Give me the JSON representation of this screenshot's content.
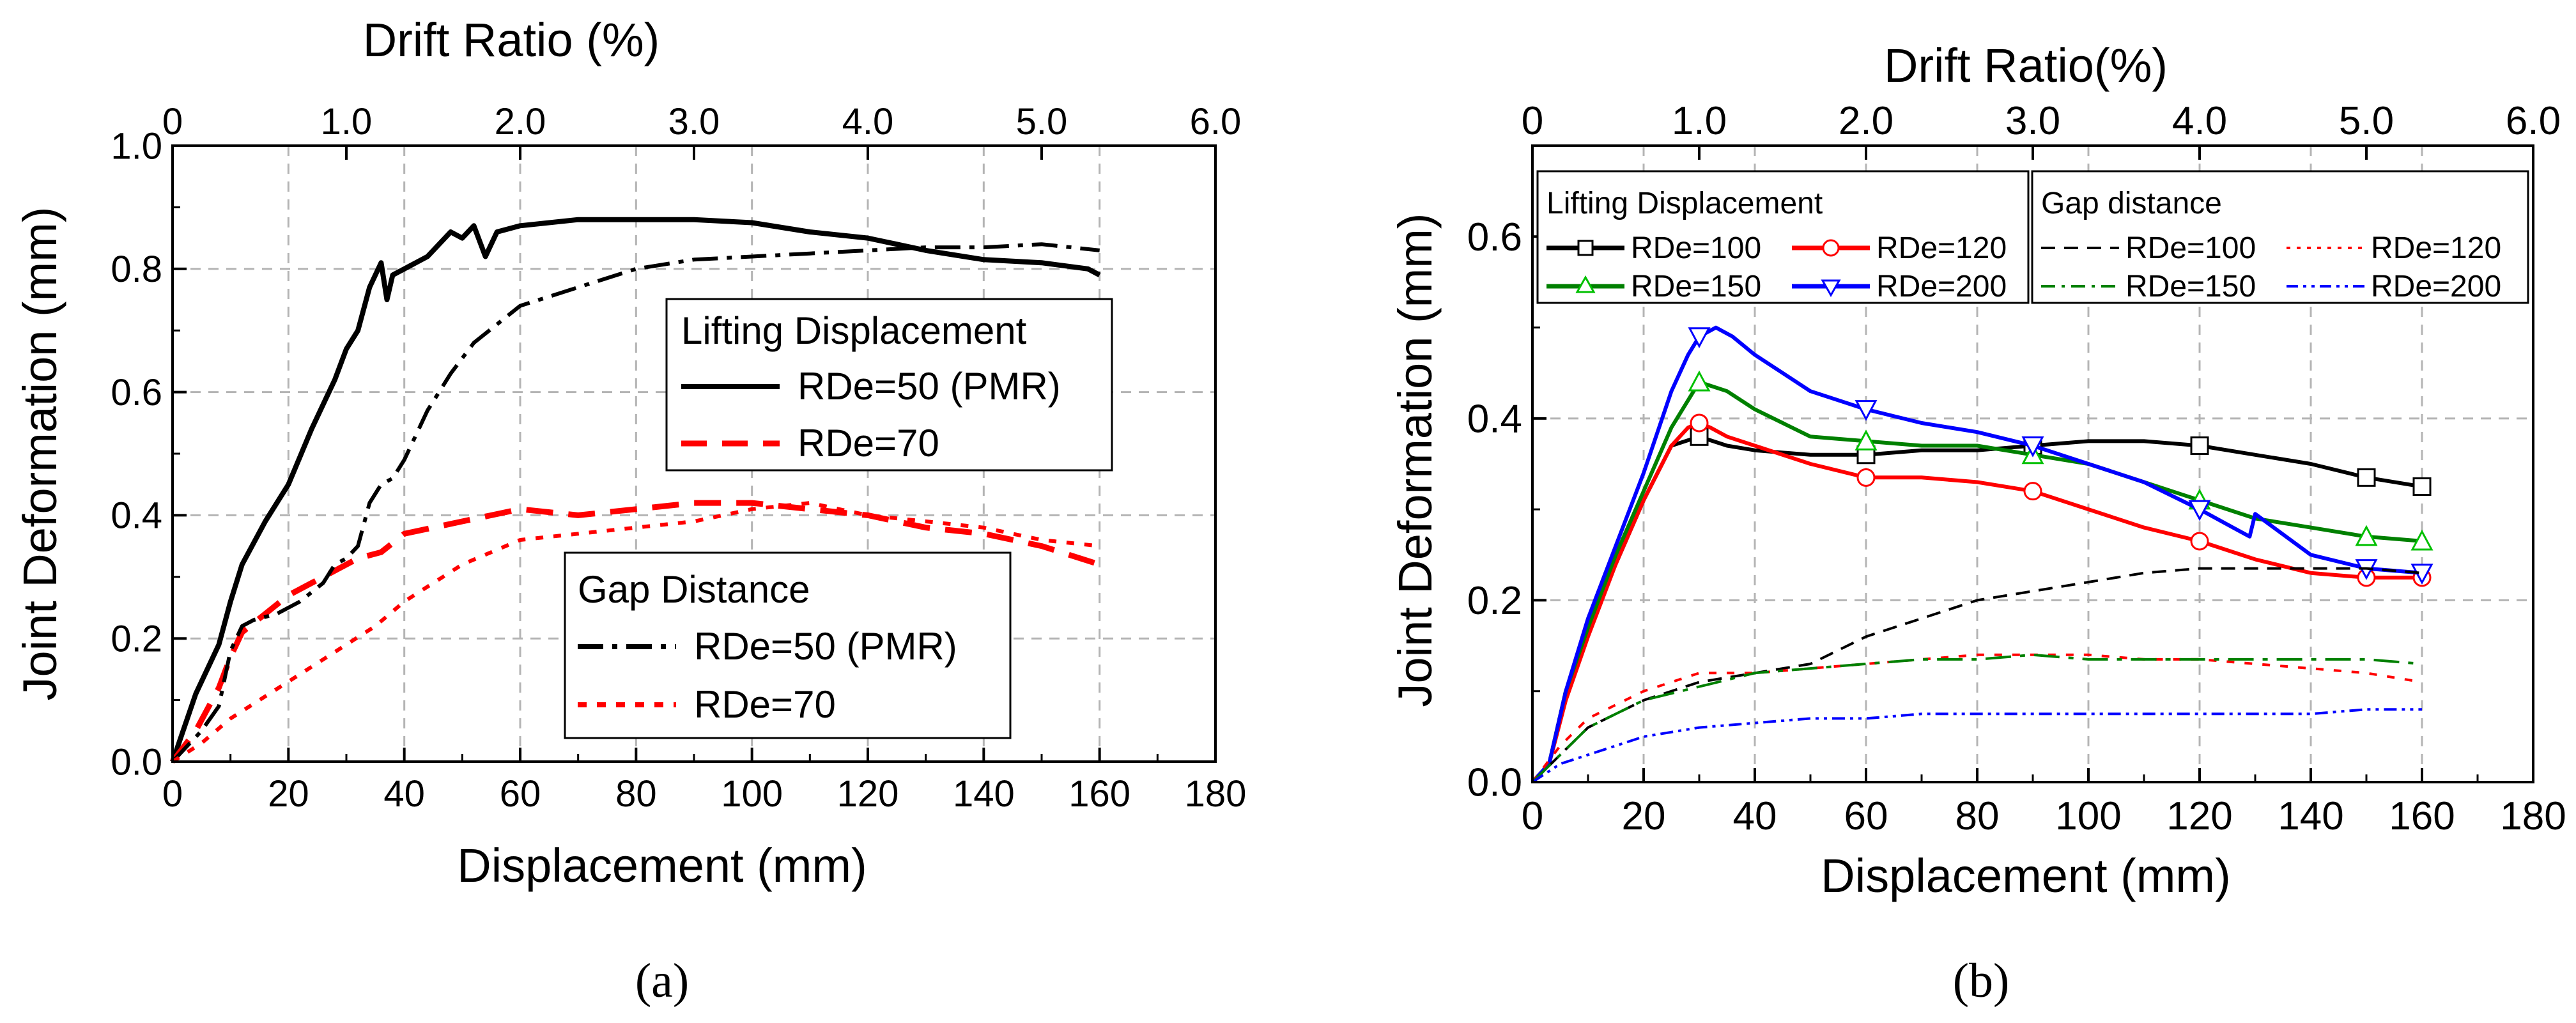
{
  "chart_data": [
    {
      "type": "line",
      "panel_label": "(a)",
      "xlabel": "Displacement (mm)",
      "ylabel": "Joint Deformation (mm)",
      "top_xlabel": "Drift Ratio (%)",
      "xlim": [
        0,
        180
      ],
      "ylim": [
        0,
        1.0
      ],
      "top_xlim": [
        0,
        6.0
      ],
      "x_ticks": [
        "0",
        "20",
        "40",
        "60",
        "80",
        "100",
        "120",
        "140",
        "160",
        "180"
      ],
      "y_ticks": [
        "0.0",
        "0.2",
        "0.4",
        "0.6",
        "0.8",
        "1.0"
      ],
      "top_ticks": [
        "0",
        "1.0",
        "2.0",
        "3.0",
        "4.0",
        "5.0",
        "6.0"
      ],
      "grid": true,
      "legends": [
        {
          "title": "Lifting Displacement",
          "position": "center-right",
          "entries": [
            "RDe=50 (PMR)",
            "RDe=70"
          ]
        },
        {
          "title": "Gap Distance",
          "position": "lower-center",
          "entries": [
            "RDe=50 (PMR)",
            "RDe=70"
          ]
        }
      ],
      "series": [
        {
          "name": "Lifting Displacement RDe=50 (PMR)",
          "color": "#000000",
          "style": "solid",
          "x": [
            0,
            4,
            8,
            10,
            12,
            16,
            20,
            24,
            28,
            30,
            32,
            34,
            36,
            37,
            38,
            40,
            44,
            48,
            50,
            52,
            54,
            56,
            60,
            70,
            80,
            90,
            100,
            110,
            120,
            130,
            140,
            150,
            158,
            160
          ],
          "y": [
            0,
            0.11,
            0.19,
            0.26,
            0.32,
            0.39,
            0.45,
            0.54,
            0.62,
            0.67,
            0.7,
            0.77,
            0.81,
            0.75,
            0.79,
            0.8,
            0.82,
            0.86,
            0.85,
            0.87,
            0.82,
            0.86,
            0.87,
            0.88,
            0.88,
            0.88,
            0.875,
            0.86,
            0.85,
            0.83,
            0.815,
            0.81,
            0.8,
            0.79
          ]
        },
        {
          "name": "Lifting Displacement RDe=70",
          "color": "#ff0000",
          "style": "dash",
          "x": [
            0,
            4,
            8,
            10,
            12,
            16,
            20,
            24,
            28,
            30,
            32,
            36,
            40,
            50,
            60,
            70,
            80,
            90,
            100,
            110,
            120,
            130,
            140,
            150,
            160
          ],
          "y": [
            0,
            0.05,
            0.12,
            0.17,
            0.21,
            0.24,
            0.27,
            0.29,
            0.31,
            0.32,
            0.33,
            0.34,
            0.37,
            0.39,
            0.41,
            0.4,
            0.41,
            0.42,
            0.42,
            0.41,
            0.4,
            0.38,
            0.37,
            0.35,
            0.32
          ]
        },
        {
          "name": "Gap Distance RDe=50 (PMR)",
          "color": "#000000",
          "style": "dashdot",
          "x": [
            0,
            5,
            8,
            10,
            12,
            14,
            18,
            22,
            26,
            28,
            30,
            32,
            34,
            36,
            38,
            40,
            42,
            44,
            46,
            48,
            52,
            56,
            60,
            70,
            80,
            90,
            100,
            110,
            120,
            130,
            140,
            150,
            160
          ],
          "y": [
            0,
            0.05,
            0.09,
            0.18,
            0.22,
            0.23,
            0.24,
            0.26,
            0.29,
            0.32,
            0.33,
            0.35,
            0.42,
            0.45,
            0.46,
            0.49,
            0.53,
            0.57,
            0.6,
            0.63,
            0.68,
            0.71,
            0.74,
            0.77,
            0.8,
            0.815,
            0.82,
            0.825,
            0.83,
            0.835,
            0.835,
            0.84,
            0.83
          ]
        },
        {
          "name": "Gap Distance RDe=70",
          "color": "#ff0000",
          "style": "dot",
          "x": [
            0,
            5,
            10,
            15,
            20,
            25,
            30,
            35,
            40,
            45,
            50,
            55,
            60,
            70,
            80,
            90,
            100,
            110,
            120,
            130,
            140,
            150,
            160
          ],
          "y": [
            0,
            0.03,
            0.07,
            0.1,
            0.13,
            0.16,
            0.19,
            0.22,
            0.26,
            0.29,
            0.32,
            0.34,
            0.36,
            0.37,
            0.38,
            0.39,
            0.41,
            0.42,
            0.4,
            0.39,
            0.38,
            0.36,
            0.35
          ]
        }
      ]
    },
    {
      "type": "line",
      "panel_label": "(b)",
      "xlabel": "Displacement (mm)",
      "ylabel": "Joint Deformation (mm)",
      "top_xlabel": "Drift Ratio(%)",
      "xlim": [
        0,
        180
      ],
      "ylim": [
        0,
        0.7
      ],
      "top_xlim": [
        0,
        6.0
      ],
      "x_ticks": [
        "0",
        "20",
        "40",
        "60",
        "80",
        "100",
        "120",
        "140",
        "160",
        "180"
      ],
      "y_ticks": [
        "0.0",
        "0.2",
        "0.4",
        "0.6"
      ],
      "top_ticks": [
        "0",
        "1.0",
        "2.0",
        "3.0",
        "4.0",
        "5.0",
        "6.0"
      ],
      "grid": true,
      "legends": [
        {
          "title": "Lifting Displacement",
          "position": "top-left",
          "entries": [
            "RDe=100",
            "RDe=120",
            "RDe=150",
            "RDe=200"
          ]
        },
        {
          "title": "Gap distance",
          "position": "top-right",
          "entries": [
            "RDe=100",
            "RDe=120",
            "RDe=150",
            "RDe=200"
          ]
        }
      ],
      "series": [
        {
          "name": "Lifting Displacement RDe=100",
          "color": "#000000",
          "style": "solid",
          "marker": "square",
          "x": [
            0,
            3,
            6,
            10,
            15,
            20,
            25,
            30,
            35,
            40,
            50,
            60,
            70,
            80,
            90,
            100,
            110,
            120,
            130,
            140,
            150,
            160
          ],
          "y": [
            0,
            0.02,
            0.1,
            0.17,
            0.24,
            0.31,
            0.37,
            0.38,
            0.37,
            0.365,
            0.36,
            0.36,
            0.365,
            0.365,
            0.37,
            0.375,
            0.375,
            0.37,
            0.36,
            0.35,
            0.335,
            0.325
          ]
        },
        {
          "name": "Lifting Displacement RDe=120",
          "color": "#ff0000",
          "style": "solid",
          "marker": "circle",
          "x": [
            0,
            3,
            6,
            10,
            15,
            20,
            25,
            28,
            30,
            32,
            35,
            40,
            50,
            60,
            70,
            80,
            90,
            100,
            110,
            120,
            130,
            140,
            150,
            160
          ],
          "y": [
            0,
            0.02,
            0.09,
            0.16,
            0.24,
            0.31,
            0.37,
            0.39,
            0.395,
            0.39,
            0.38,
            0.37,
            0.35,
            0.335,
            0.335,
            0.33,
            0.32,
            0.3,
            0.28,
            0.265,
            0.245,
            0.23,
            0.225,
            0.225
          ]
        },
        {
          "name": "Lifting Displacement RDe=150",
          "color": "#008000",
          "style": "solid",
          "marker": "triangle-up",
          "x": [
            0,
            3,
            6,
            10,
            15,
            20,
            25,
            30,
            35,
            40,
            50,
            60,
            70,
            80,
            90,
            100,
            110,
            120,
            130,
            140,
            150,
            160
          ],
          "y": [
            0,
            0.02,
            0.1,
            0.17,
            0.25,
            0.32,
            0.39,
            0.44,
            0.43,
            0.41,
            0.38,
            0.375,
            0.37,
            0.37,
            0.36,
            0.35,
            0.33,
            0.31,
            0.29,
            0.28,
            0.27,
            0.265
          ]
        },
        {
          "name": "Lifting Displacement RDe=200",
          "color": "#0000ff",
          "style": "solid",
          "marker": "triangle-down",
          "x": [
            0,
            3,
            6,
            10,
            15,
            20,
            25,
            28,
            30,
            33,
            36,
            40,
            50,
            60,
            70,
            80,
            90,
            100,
            110,
            120,
            126,
            129,
            130,
            140,
            150,
            160
          ],
          "y": [
            0,
            0.02,
            0.1,
            0.18,
            0.26,
            0.34,
            0.43,
            0.47,
            0.49,
            0.5,
            0.49,
            0.47,
            0.43,
            0.41,
            0.395,
            0.385,
            0.37,
            0.35,
            0.33,
            0.3,
            0.28,
            0.27,
            0.295,
            0.25,
            0.235,
            0.23
          ]
        },
        {
          "name": "Gap distance RDe=100",
          "color": "#000000",
          "style": "dash",
          "x": [
            0,
            5,
            10,
            20,
            30,
            40,
            50,
            60,
            70,
            80,
            90,
            100,
            110,
            120,
            130,
            140,
            150,
            160
          ],
          "y": [
            0,
            0.03,
            0.06,
            0.09,
            0.11,
            0.12,
            0.13,
            0.16,
            0.18,
            0.2,
            0.21,
            0.22,
            0.23,
            0.235,
            0.235,
            0.235,
            0.235,
            0.23
          ]
        },
        {
          "name": "Gap distance RDe=120",
          "color": "#ff0000",
          "style": "dot",
          "x": [
            0,
            5,
            10,
            20,
            30,
            40,
            50,
            60,
            70,
            80,
            90,
            100,
            110,
            120,
            130,
            140,
            150,
            160
          ],
          "y": [
            0,
            0.04,
            0.07,
            0.1,
            0.12,
            0.12,
            0.125,
            0.13,
            0.135,
            0.14,
            0.14,
            0.14,
            0.135,
            0.135,
            0.13,
            0.125,
            0.12,
            0.11
          ]
        },
        {
          "name": "Gap distance RDe=150",
          "color": "#008000",
          "style": "dashdot",
          "x": [
            0,
            5,
            10,
            20,
            30,
            40,
            50,
            60,
            70,
            80,
            90,
            100,
            110,
            120,
            130,
            140,
            150,
            160
          ],
          "y": [
            0,
            0.03,
            0.06,
            0.09,
            0.105,
            0.12,
            0.125,
            0.13,
            0.135,
            0.135,
            0.14,
            0.135,
            0.135,
            0.135,
            0.135,
            0.135,
            0.135,
            0.13
          ]
        },
        {
          "name": "Gap distance RDe=200",
          "color": "#0000ff",
          "style": "dashdotdot",
          "x": [
            0,
            5,
            10,
            15,
            20,
            30,
            40,
            50,
            60,
            70,
            80,
            90,
            100,
            110,
            120,
            130,
            140,
            150,
            160
          ],
          "y": [
            0,
            0.02,
            0.03,
            0.04,
            0.05,
            0.06,
            0.065,
            0.07,
            0.07,
            0.075,
            0.075,
            0.075,
            0.075,
            0.075,
            0.075,
            0.075,
            0.075,
            0.08,
            0.08
          ]
        }
      ]
    }
  ]
}
